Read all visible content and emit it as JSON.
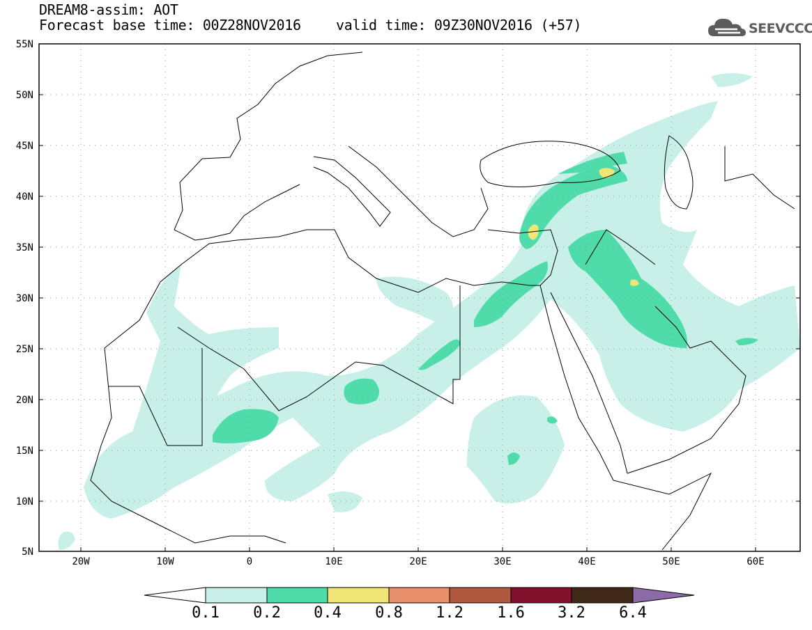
{
  "header": {
    "model_title": "DREAM8-assim: AOT",
    "base_time": "Forecast base time: 00Z28NOV2016",
    "valid_time": "valid time: 09Z30NOV2016 (+57)",
    "logo_text": "SEEVCCC",
    "logo_icon": "cloud-icon"
  },
  "map": {
    "lat_labels": [
      "55N",
      "50N",
      "45N",
      "40N",
      "35N",
      "30N",
      "25N",
      "20N",
      "15N",
      "10N",
      "5N"
    ],
    "lon_labels": [
      "20W",
      "10W",
      "0",
      "10E",
      "20E",
      "30E",
      "40E",
      "50E",
      "60E"
    ],
    "lat_range": [
      5,
      55
    ],
    "lon_range": [
      -25,
      65
    ],
    "grid": true
  },
  "colorbar": {
    "labels": [
      "0.1",
      "0.2",
      "0.4",
      "0.8",
      "1.2",
      "1.6",
      "3.2",
      "6.4"
    ],
    "colors": [
      "#ffffff",
      "#c8f0e8",
      "#4fdcaa",
      "#f0e678",
      "#e8906c",
      "#b05840",
      "#80102c",
      "#402818",
      "#8c6ca8"
    ]
  }
}
